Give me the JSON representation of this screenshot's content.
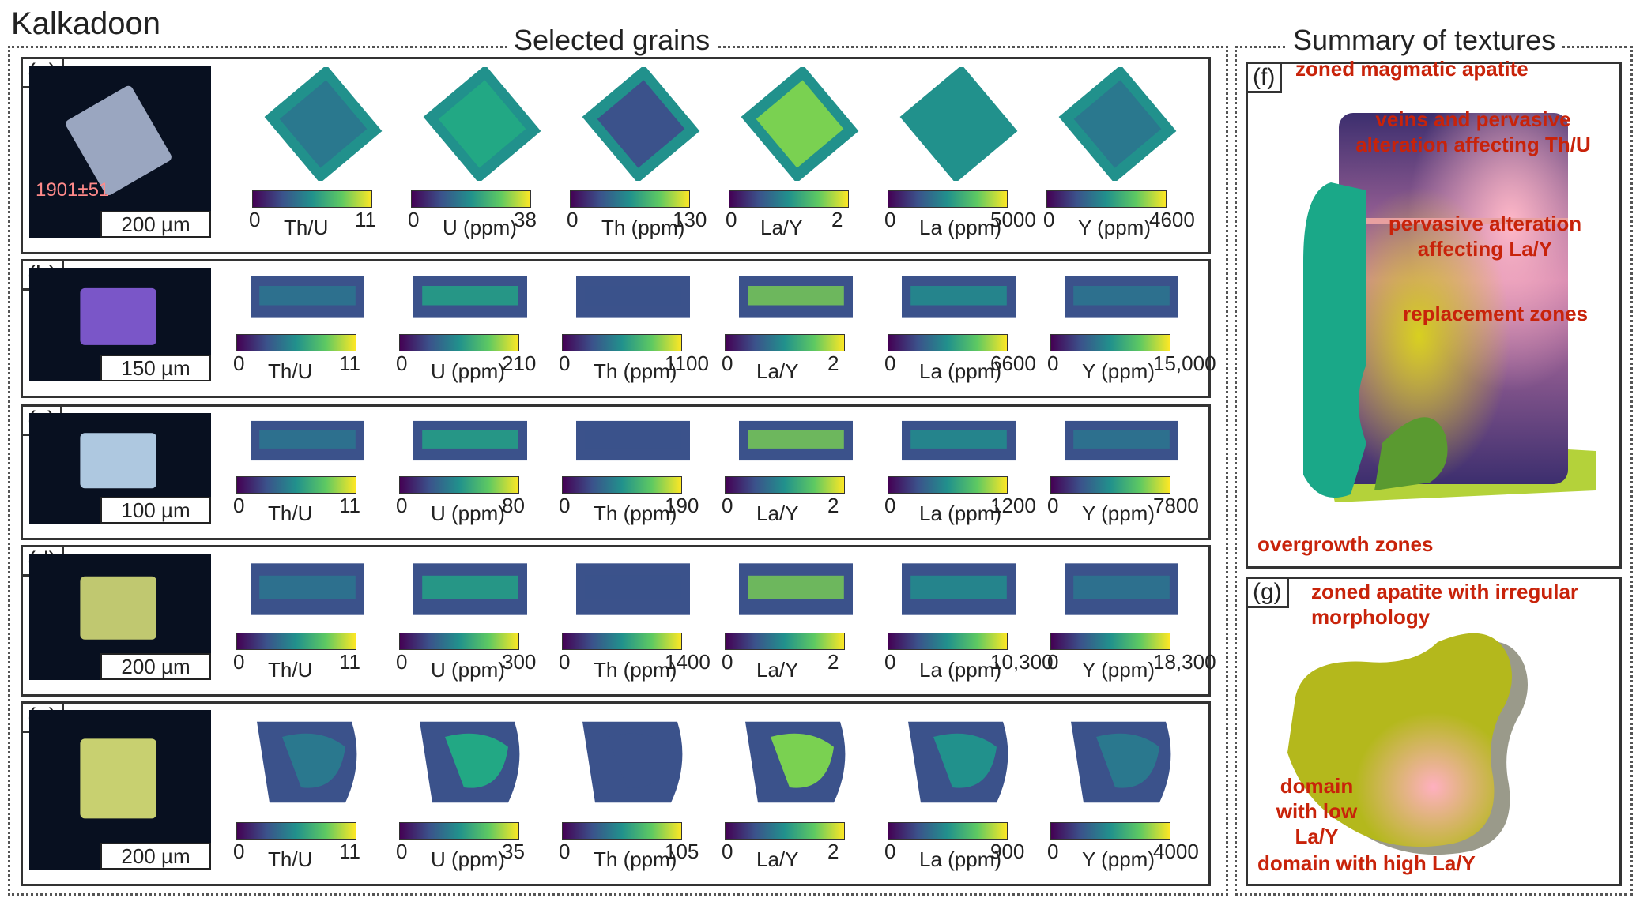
{
  "figure_title": "Kalkadoon",
  "left_section_title": "Selected grains",
  "right_section_title": "Summary of textures",
  "rows": [
    {
      "label": "(a)",
      "scale": "200 µm",
      "photo_color": "#9aa6c0",
      "age": "1901±51",
      "maps": [
        {
          "name": "Th/U",
          "min": "0",
          "max": "11"
        },
        {
          "name": "U (ppm)",
          "min": "0",
          "max": "38"
        },
        {
          "name": "Th (ppm)",
          "min": "0",
          "max": "130"
        },
        {
          "name": "La/Y",
          "min": "0",
          "max": "2"
        },
        {
          "name": "La (ppm)",
          "min": "0",
          "max": "5000"
        },
        {
          "name": "Y (ppm)",
          "min": "0",
          "max": "4600"
        }
      ]
    },
    {
      "label": "(b)",
      "scale": "150 µm",
      "photo_color": "#7a56c8",
      "maps": [
        {
          "name": "Th/U",
          "min": "0",
          "max": "11"
        },
        {
          "name": "U (ppm)",
          "min": "0",
          "max": "210"
        },
        {
          "name": "Th (ppm)",
          "min": "0",
          "max": "1100"
        },
        {
          "name": "La/Y",
          "min": "0",
          "max": "2"
        },
        {
          "name": "La (ppm)",
          "min": "0",
          "max": "6600"
        },
        {
          "name": "Y (ppm)",
          "min": "0",
          "max": "15,000"
        }
      ]
    },
    {
      "label": "(c)",
      "scale": "100 µm",
      "photo_color": "#aec8e0",
      "maps": [
        {
          "name": "Th/U",
          "min": "0",
          "max": "11"
        },
        {
          "name": "U (ppm)",
          "min": "0",
          "max": "80"
        },
        {
          "name": "Th (ppm)",
          "min": "0",
          "max": "190"
        },
        {
          "name": "La/Y",
          "min": "0",
          "max": "2"
        },
        {
          "name": "La (ppm)",
          "min": "0",
          "max": "1200"
        },
        {
          "name": "Y (ppm)",
          "min": "0",
          "max": "7800"
        }
      ]
    },
    {
      "label": "(d)",
      "scale": "200 µm",
      "photo_color": "#c0c870",
      "maps": [
        {
          "name": "Th/U",
          "min": "0",
          "max": "11"
        },
        {
          "name": "U (ppm)",
          "min": "0",
          "max": "300"
        },
        {
          "name": "Th (ppm)",
          "min": "0",
          "max": "1400"
        },
        {
          "name": "La/Y",
          "min": "0",
          "max": "2"
        },
        {
          "name": "La (ppm)",
          "min": "0",
          "max": "10,300"
        },
        {
          "name": "Y (ppm)",
          "min": "0",
          "max": "18,300"
        }
      ]
    },
    {
      "label": "(e)",
      "scale": "200 µm",
      "photo_color": "#c8d070",
      "maps": [
        {
          "name": "Th/U",
          "min": "0",
          "max": "11"
        },
        {
          "name": "U (ppm)",
          "min": "0",
          "max": "35"
        },
        {
          "name": "Th (ppm)",
          "min": "0",
          "max": "105"
        },
        {
          "name": "La/Y",
          "min": "0",
          "max": "2"
        },
        {
          "name": "La (ppm)",
          "min": "0",
          "max": "900"
        },
        {
          "name": "Y (ppm)",
          "min": "0",
          "max": "4000"
        }
      ]
    }
  ],
  "panel_f": {
    "label": "(f)",
    "annotations": [
      "zoned magmatic apatite",
      "veins and pervasive alteration affecting Th/U",
      "pervasive alteration affecting La/Y",
      "replacement zones",
      "overgrowth zones"
    ]
  },
  "panel_g": {
    "label": "(g)",
    "annotations": [
      "zoned apatite with irregular morphology",
      "domain with low La/Y",
      "domain with high La/Y"
    ]
  },
  "colors": {
    "annotation": "#c8230a",
    "cmap_low": "#440154",
    "cmap_high": "#fde725"
  }
}
